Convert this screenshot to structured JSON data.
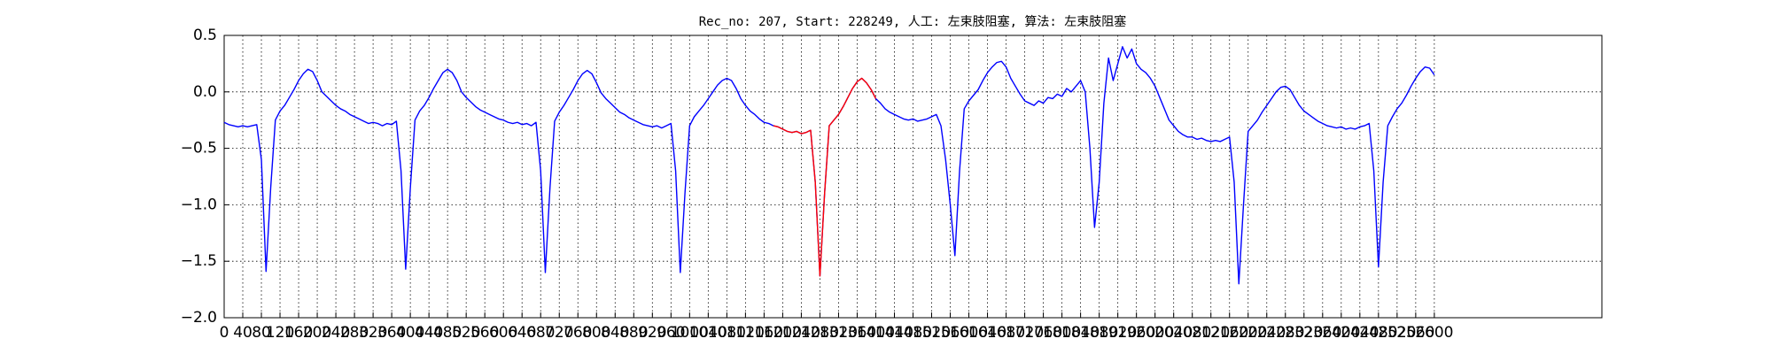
{
  "chart_data": {
    "type": "line",
    "title": "Rec_no: 207, Start: 228249, 人工: 左束肢阻塞, 算法: 左束肢阻塞",
    "xlim": [
      0,
      2960
    ],
    "ylim": [
      -2.0,
      0.5
    ],
    "xticks": [
      0,
      40,
      80,
      120,
      160,
      200,
      240,
      280,
      320,
      360,
      400,
      440,
      480,
      520,
      560,
      600,
      640,
      680,
      720,
      760,
      800,
      840,
      880,
      920,
      960,
      1000,
      1040,
      1080,
      1120,
      1160,
      1200,
      1240,
      1280,
      1320,
      1360,
      1400,
      1440,
      1480,
      1520,
      1560,
      1600,
      1640,
      1680,
      1720,
      1760,
      1800,
      1840,
      1880,
      1920,
      1960,
      2000,
      2040,
      2080,
      2120,
      2160,
      2200,
      2240,
      2280,
      2320,
      2360,
      2400,
      2440,
      2480,
      2520,
      2560,
      2600
    ],
    "yticks": [
      {
        "value": -2.0,
        "label": "−2.0"
      },
      {
        "value": -1.5,
        "label": "−1.5"
      },
      {
        "value": -1.0,
        "label": "−1.0"
      },
      {
        "value": -0.5,
        "label": "−0.5"
      },
      {
        "value": 0.0,
        "label": "0.0"
      },
      {
        "value": 0.5,
        "label": "0.5"
      }
    ],
    "grid": true,
    "series": [
      {
        "color": "#0000ff",
        "x": [
          0,
          10,
          20,
          30,
          40,
          50,
          60,
          70,
          80,
          90,
          100,
          110,
          120,
          130,
          140,
          150,
          160,
          170,
          180,
          190,
          200,
          210,
          220,
          230,
          240,
          250,
          260,
          270,
          280,
          290,
          300,
          310,
          320,
          330,
          340,
          350,
          360,
          370,
          380,
          390,
          400,
          410,
          420,
          430,
          440,
          450,
          460,
          470,
          480,
          490,
          500,
          510,
          520,
          530,
          540,
          550,
          560,
          570,
          580,
          590,
          600,
          610,
          620,
          630,
          640,
          650,
          660,
          670,
          680,
          690,
          700,
          710,
          720,
          730,
          740,
          750,
          760,
          770,
          780,
          790,
          800,
          810,
          820,
          830,
          840,
          850,
          860,
          870,
          880,
          890,
          900,
          910,
          920,
          930,
          940,
          950,
          960,
          970,
          980,
          990,
          1000,
          1010,
          1020,
          1030,
          1040,
          1050,
          1060,
          1070,
          1080,
          1090,
          1100,
          1110,
          1120,
          1130,
          1140,
          1150,
          1160,
          1170,
          1180,
          1190,
          1200,
          1210,
          1220,
          1230,
          1240,
          1250,
          1260,
          1270,
          1280,
          1290,
          1300,
          1310,
          1320,
          1330,
          1340,
          1350,
          1360,
          1370,
          1380,
          1390,
          1400,
          1410,
          1420,
          1430,
          1440,
          1450,
          1460,
          1470,
          1480,
          1490,
          1500,
          1510,
          1520,
          1530,
          1540,
          1550,
          1560,
          1570,
          1580,
          1590,
          1600,
          1610,
          1620,
          1630,
          1640,
          1650,
          1660,
          1670,
          1680,
          1690,
          1700,
          1710,
          1720,
          1730,
          1740,
          1750,
          1760,
          1770,
          1780,
          1790,
          1800,
          1810,
          1820,
          1830,
          1840,
          1850,
          1860,
          1870,
          1880,
          1890,
          1900,
          1910,
          1920,
          1930,
          1940,
          1950,
          1960,
          1970,
          1980,
          1990,
          2000,
          2010,
          2020,
          2030,
          2040,
          2050,
          2060,
          2070,
          2080,
          2090,
          2100,
          2110,
          2120,
          2130,
          2140,
          2150,
          2160,
          2170,
          2180,
          2190,
          2200,
          2210,
          2220,
          2230,
          2240,
          2250,
          2260,
          2270,
          2280,
          2290,
          2300,
          2310,
          2320,
          2330,
          2340,
          2350,
          2360,
          2370,
          2380,
          2390,
          2400,
          2410,
          2420,
          2430,
          2440,
          2450,
          2460,
          2470,
          2480,
          2490,
          2500,
          2510,
          2520,
          2530,
          2540,
          2550,
          2560,
          2570,
          2580,
          2590,
          2600
        ],
        "values": [
          -0.27,
          -0.29,
          -0.3,
          -0.31,
          -0.3,
          -0.31,
          -0.3,
          -0.29,
          -0.6,
          -1.59,
          -0.85,
          -0.25,
          -0.17,
          -0.12,
          -0.05,
          0.02,
          0.1,
          0.16,
          0.2,
          0.18,
          0.1,
          0.0,
          -0.04,
          -0.08,
          -0.12,
          -0.15,
          -0.17,
          -0.2,
          -0.22,
          -0.24,
          -0.26,
          -0.28,
          -0.27,
          -0.28,
          -0.3,
          -0.28,
          -0.29,
          -0.26,
          -0.7,
          -1.57,
          -0.85,
          -0.25,
          -0.17,
          -0.12,
          -0.05,
          0.03,
          0.1,
          0.17,
          0.2,
          0.17,
          0.1,
          0.0,
          -0.05,
          -0.09,
          -0.13,
          -0.16,
          -0.18,
          -0.2,
          -0.22,
          -0.24,
          -0.25,
          -0.27,
          -0.28,
          -0.27,
          -0.29,
          -0.28,
          -0.3,
          -0.27,
          -0.7,
          -1.6,
          -0.85,
          -0.26,
          -0.18,
          -0.12,
          -0.05,
          0.02,
          0.1,
          0.16,
          0.19,
          0.16,
          0.08,
          -0.01,
          -0.06,
          -0.1,
          -0.14,
          -0.18,
          -0.2,
          -0.23,
          -0.25,
          -0.27,
          -0.29,
          -0.3,
          -0.31,
          -0.3,
          -0.32,
          -0.3,
          -0.28,
          -0.7,
          -1.6,
          -0.9,
          -0.3,
          -0.22,
          -0.17,
          -0.12,
          -0.06,
          0.0,
          0.06,
          0.1,
          0.12,
          0.1,
          0.03,
          -0.06,
          -0.12,
          -0.17,
          -0.2,
          -0.24,
          -0.27,
          -0.28,
          -0.3,
          -0.31,
          -0.33,
          -0.35,
          -0.36,
          -0.35,
          -0.37,
          -0.36,
          -0.34,
          -0.8,
          -1.63,
          -0.9,
          -0.3,
          -0.25,
          -0.2,
          -0.13,
          -0.05,
          0.03,
          0.09,
          0.12,
          0.08,
          0.02,
          -0.06,
          -0.1,
          -0.15,
          -0.18,
          -0.2,
          -0.22,
          -0.24,
          -0.25,
          -0.24,
          -0.26,
          -0.25,
          -0.24,
          -0.22,
          -0.2,
          -0.3,
          -0.6,
          -1.0,
          -1.45,
          -0.7,
          -0.15,
          -0.08,
          -0.03,
          0.02,
          0.1,
          0.17,
          0.22,
          0.26,
          0.27,
          0.22,
          0.12,
          0.05,
          -0.02,
          -0.08,
          -0.1,
          -0.12,
          -0.08,
          -0.1,
          -0.05,
          -0.06,
          -0.02,
          -0.04,
          0.03,
          0.0,
          0.05,
          0.1,
          0.0,
          -0.5,
          -1.2,
          -0.8,
          -0.1,
          0.3,
          0.1,
          0.25,
          0.4,
          0.3,
          0.38,
          0.25,
          0.2,
          0.17,
          0.12,
          0.05,
          -0.05,
          -0.15,
          -0.25,
          -0.3,
          -0.35,
          -0.38,
          -0.4,
          -0.4,
          -0.42,
          -0.41,
          -0.43,
          -0.44,
          -0.43,
          -0.44,
          -0.42,
          -0.4,
          -0.8,
          -1.7,
          -1.0,
          -0.35,
          -0.3,
          -0.25,
          -0.18,
          -0.12,
          -0.06,
          0.0,
          0.04,
          0.05,
          0.02,
          -0.05,
          -0.12,
          -0.17,
          -0.2,
          -0.23,
          -0.26,
          -0.28,
          -0.3,
          -0.31,
          -0.32,
          -0.31,
          -0.33,
          -0.32,
          -0.33,
          -0.31,
          -0.3,
          -0.28,
          -0.7,
          -1.55,
          -0.8,
          -0.3,
          -0.22,
          -0.15,
          -0.1,
          -0.03,
          0.05,
          0.12,
          0.18,
          0.22,
          0.21,
          0.15
        ]
      },
      {
        "color": "#ff0000",
        "x": [
          1180,
          1190,
          1200,
          1210,
          1220,
          1230,
          1240,
          1250,
          1260,
          1270,
          1280,
          1290,
          1300,
          1310,
          1320,
          1330,
          1340,
          1350,
          1360,
          1370,
          1380,
          1390,
          1400
        ],
        "values": [
          -0.3,
          -0.31,
          -0.33,
          -0.35,
          -0.36,
          -0.35,
          -0.37,
          -0.36,
          -0.34,
          -0.8,
          -1.63,
          -0.9,
          -0.3,
          -0.25,
          -0.2,
          -0.13,
          -0.05,
          0.03,
          0.09,
          0.12,
          0.08,
          0.02,
          -0.06
        ]
      }
    ]
  }
}
